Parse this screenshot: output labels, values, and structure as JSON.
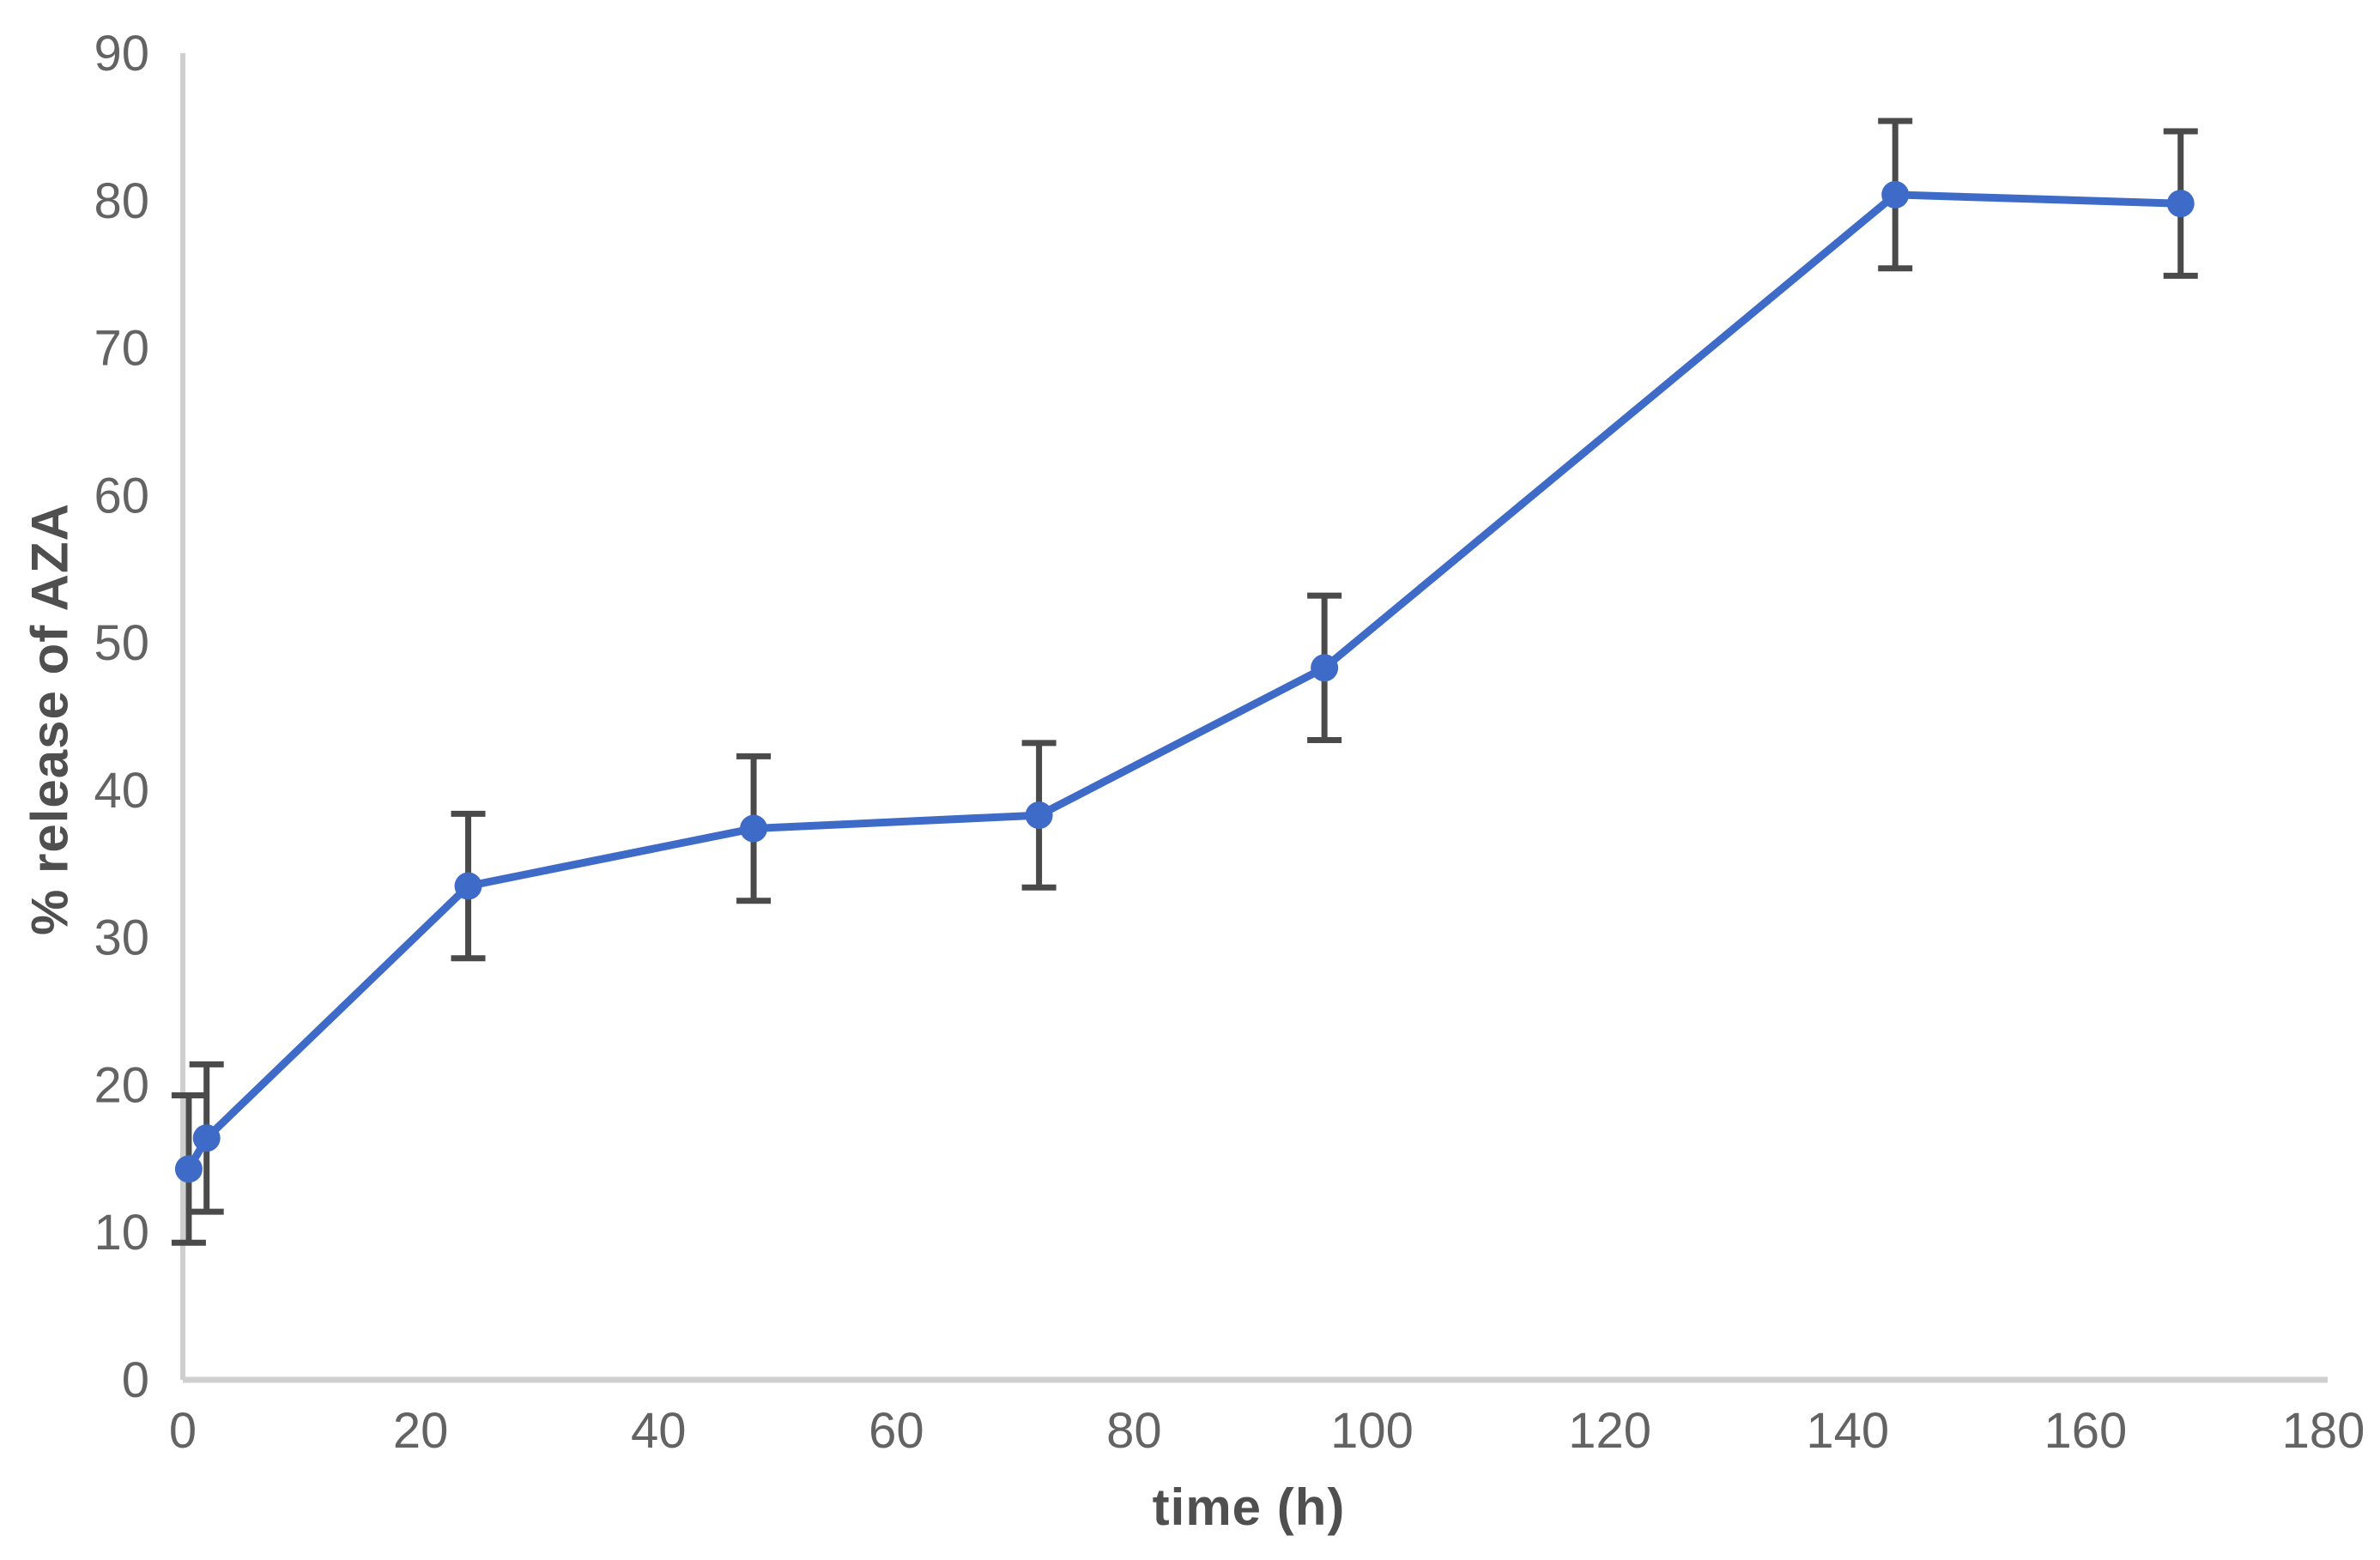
{
  "page": {
    "background_color": "#ffffff"
  },
  "chart_data": {
    "type": "line",
    "title": "",
    "xlabel": "time (h)",
    "ylabel": "% release of AZA",
    "xlim": [
      0,
      180
    ],
    "ylim": [
      0,
      90
    ],
    "xticks": [
      0,
      20,
      40,
      60,
      80,
      100,
      120,
      140,
      160,
      180
    ],
    "yticks": [
      0,
      10,
      20,
      30,
      40,
      50,
      60,
      70,
      80,
      90
    ],
    "grid": false,
    "legend": false,
    "axis_color": "#cfcfcf",
    "tick_label_color": "#636363",
    "axis_title_color": "#4f4f4f",
    "series": [
      {
        "name": "% release of AZA",
        "color": "#3e6bc8",
        "marker": "circle",
        "error_bar_color": "#4a4a4a",
        "points": [
          {
            "x": 0.5,
            "y": 14.3,
            "yerr": 5.0
          },
          {
            "x": 2,
            "y": 16.4,
            "yerr": 5.0
          },
          {
            "x": 24,
            "y": 33.5,
            "yerr": 4.9
          },
          {
            "x": 48,
            "y": 37.4,
            "yerr": 4.9
          },
          {
            "x": 72,
            "y": 38.3,
            "yerr": 4.9
          },
          {
            "x": 96,
            "y": 48.3,
            "yerr": 4.9
          },
          {
            "x": 144,
            "y": 80.4,
            "yerr": 5.0
          },
          {
            "x": 168,
            "y": 79.8,
            "yerr": 4.9
          }
        ]
      }
    ]
  }
}
